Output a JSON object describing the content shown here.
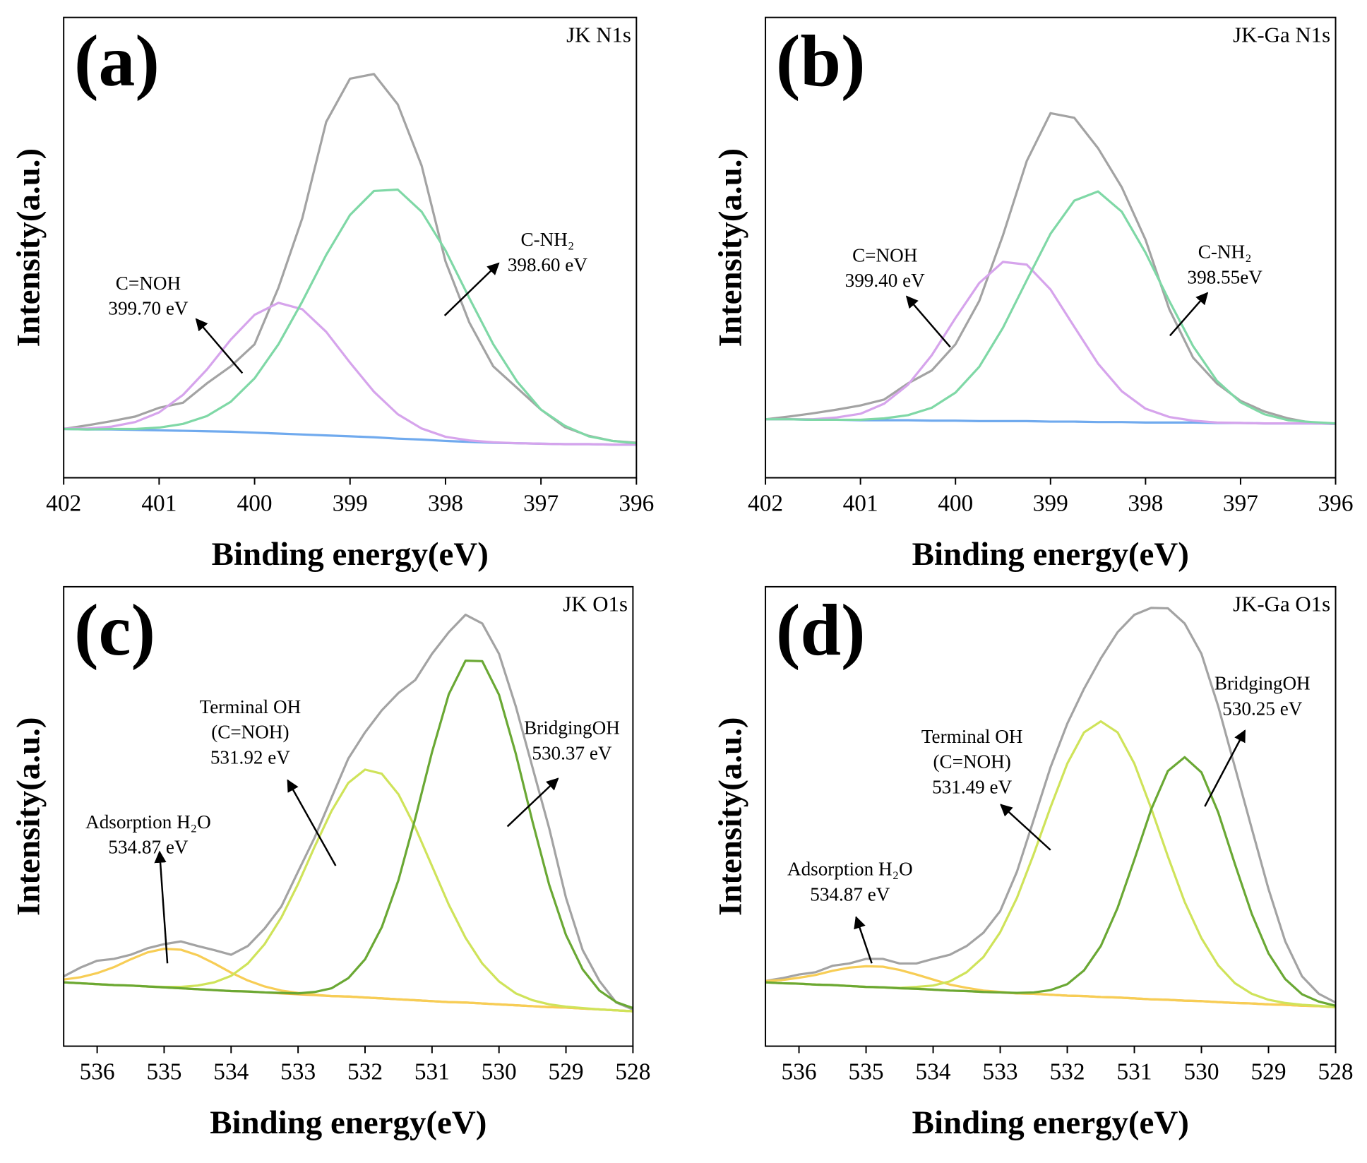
{
  "chart_data": [
    {
      "type": "line",
      "panel_label": "(a)",
      "title": "JK N1s",
      "xlabel": "Binding energy(eV)",
      "ylabel": "Intensity(a.u.)",
      "xlim": [
        402,
        396
      ],
      "xticks": [
        402,
        401,
        400,
        399,
        398,
        397,
        396
      ],
      "ylim": [
        0,
        100
      ],
      "x": [
        402,
        401.75,
        401.5,
        401.25,
        401,
        400.75,
        400.5,
        400.25,
        400,
        399.75,
        399.5,
        399.25,
        399,
        398.75,
        398.5,
        398.25,
        398,
        397.75,
        397.5,
        397.25,
        397,
        396.75,
        396.5,
        396.25,
        396
      ],
      "series": [
        {
          "color": "#a3a3a3",
          "values": [
            10.6,
            11.4,
            12.3,
            13.3,
            15.2,
            16.3,
            20.5,
            24.2,
            29.0,
            41.3,
            56.4,
            77.3,
            86.7,
            87.7,
            81.1,
            67.8,
            47.0,
            33.7,
            24.2,
            19.5,
            14.8,
            11.0,
            9.1,
            8.0,
            7.6
          ]
        },
        {
          "color": "#70aaee",
          "values": [
            10.6,
            10.5,
            10.5,
            10.4,
            10.3,
            10.2,
            10.1,
            10.0,
            9.8,
            9.6,
            9.4,
            9.2,
            9.0,
            8.8,
            8.5,
            8.3,
            8.0,
            7.8,
            7.6,
            7.5,
            7.4,
            7.3,
            7.3,
            7.2,
            7.2
          ]
        },
        {
          "color": "#d6a4ec",
          "values": [
            10.7,
            10.7,
            11.1,
            12.1,
            14.2,
            18.0,
            23.5,
            30.0,
            35.4,
            38.0,
            36.6,
            31.7,
            25.0,
            18.7,
            13.8,
            10.7,
            8.9,
            8.1,
            7.7,
            7.5,
            7.4,
            7.3,
            7.3,
            7.2,
            7.2
          ]
        },
        {
          "color": "#7fd8a6",
          "values": [
            10.6,
            10.5,
            10.6,
            10.6,
            10.9,
            11.7,
            13.4,
            16.5,
            21.6,
            29.0,
            38.3,
            48.4,
            57.1,
            62.3,
            62.6,
            57.8,
            49.4,
            39.0,
            29.0,
            20.9,
            14.8,
            11.3,
            9.0,
            8.0,
            7.5
          ]
        }
      ],
      "annotations": [
        [
          "C=NOH",
          "399.70 eV"
        ],
        [
          "C-NH₂",
          "398.60 eV"
        ]
      ]
    },
    {
      "type": "line",
      "panel_label": "(b)",
      "title": "JK-Ga N1s",
      "xlabel": "Binding energy(eV)",
      "ylabel": "Intensity(a.u.)",
      "xlim": [
        402,
        396
      ],
      "xticks": [
        402,
        401,
        400,
        399,
        398,
        397,
        396
      ],
      "ylim": [
        0,
        100
      ],
      "x": [
        402,
        401.75,
        401.5,
        401.25,
        401,
        400.75,
        400.5,
        400.25,
        400,
        399.75,
        399.5,
        399.25,
        399,
        398.75,
        398.5,
        398.25,
        398,
        397.75,
        397.5,
        397.25,
        397,
        396.75,
        396.5,
        396.25,
        396
      ],
      "series": [
        {
          "color": "#a3a3a3",
          "values": [
            12.7,
            13.3,
            14.0,
            14.8,
            15.7,
            17.0,
            20.5,
            23.3,
            29.0,
            38.4,
            52.7,
            68.8,
            79.2,
            78.2,
            71.6,
            63.1,
            51.7,
            36.6,
            26.1,
            20.5,
            16.7,
            14.4,
            12.9,
            11.9,
            11.7
          ]
        },
        {
          "color": "#70aaee",
          "values": [
            12.7,
            12.7,
            12.6,
            12.6,
            12.5,
            12.5,
            12.5,
            12.4,
            12.4,
            12.3,
            12.3,
            12.3,
            12.2,
            12.2,
            12.1,
            12.1,
            12.0,
            12.0,
            12.0,
            11.9,
            11.9,
            11.8,
            11.8,
            11.8,
            11.7
          ]
        },
        {
          "color": "#d6a4ec",
          "values": [
            12.7,
            12.7,
            12.7,
            13.1,
            13.9,
            16.1,
            20.2,
            26.6,
            34.7,
            42.3,
            46.9,
            46.3,
            40.9,
            32.8,
            24.8,
            18.8,
            15.0,
            13.2,
            12.4,
            12.0,
            11.9,
            11.8,
            11.8,
            11.8,
            11.7
          ]
        },
        {
          "color": "#7fd8a6",
          "values": [
            12.7,
            12.7,
            12.6,
            12.6,
            12.6,
            12.9,
            13.6,
            15.2,
            18.5,
            24.1,
            32.6,
            42.9,
            53.0,
            60.2,
            62.2,
            57.8,
            48.9,
            38.4,
            28.6,
            21.1,
            16.4,
            13.8,
            12.5,
            12.1,
            11.8
          ]
        }
      ],
      "annotations": [
        [
          "C=NOH",
          "399.40 eV"
        ],
        [
          "C-NH₂",
          "398.55eV"
        ]
      ]
    },
    {
      "type": "line",
      "panel_label": "(c)",
      "title": "JK O1s",
      "xlabel": "Binding energy(eV)",
      "ylabel": "Intensity(a.u.)",
      "xlim": [
        536.5,
        528
      ],
      "xticks": [
        536,
        535,
        534,
        533,
        532,
        531,
        530,
        529,
        528
      ],
      "ylim": [
        0,
        100
      ],
      "x": [
        536.5,
        536.25,
        536,
        535.75,
        535.5,
        535.25,
        535,
        534.75,
        534.5,
        534.25,
        534,
        533.75,
        533.5,
        533.25,
        533,
        532.75,
        532.5,
        532.25,
        532,
        531.75,
        531.5,
        531.25,
        531,
        530.75,
        530.5,
        530.25,
        530,
        529.75,
        529.5,
        529.25,
        529,
        528.75,
        528.5,
        528.25,
        528
      ],
      "series": [
        {
          "color": "#a3a3a3",
          "values": [
            15.2,
            17.1,
            18.6,
            19.0,
            19.9,
            21.3,
            22.2,
            22.8,
            21.8,
            20.9,
            19.9,
            21.8,
            25.6,
            30.4,
            38.0,
            45.5,
            54.1,
            62.6,
            68.3,
            73.1,
            76.9,
            79.7,
            85.4,
            90.1,
            93.9,
            92.0,
            85.4,
            74.0,
            60.7,
            47.4,
            32.3,
            20.9,
            14.2,
            9.5,
            8.0
          ]
        },
        {
          "color": "#f2b53c",
          "values": [
            13.9,
            13.7,
            13.5,
            13.3,
            13.2,
            13.0,
            12.8,
            12.6,
            12.4,
            12.2,
            12.0,
            11.9,
            11.7,
            11.5,
            11.3,
            11.1,
            10.9,
            10.8,
            10.6,
            10.4,
            10.2,
            10.0,
            9.8,
            9.6,
            9.5,
            9.3,
            9.1,
            8.9,
            8.7,
            8.5,
            8.4,
            8.2,
            8.0,
            7.8,
            7.6
          ]
        },
        {
          "color": "#f7cd55",
          "values": [
            14.5,
            15.0,
            15.9,
            17.2,
            18.9,
            20.4,
            21.2,
            21.0,
            19.8,
            18.0,
            16.0,
            14.3,
            13.0,
            12.1,
            11.6,
            11.2,
            10.9,
            10.8,
            10.6,
            10.4,
            10.2,
            10.0,
            9.8,
            9.6,
            9.5,
            9.3,
            9.1,
            8.9,
            8.7,
            8.5,
            8.4,
            8.2,
            8.0,
            7.8,
            7.6
          ]
        },
        {
          "color": "#cfe35a",
          "values": [
            13.9,
            13.7,
            13.5,
            13.3,
            13.2,
            13.0,
            12.9,
            12.9,
            13.2,
            13.9,
            15.3,
            18.0,
            22.2,
            28.0,
            35.3,
            43.5,
            51.2,
            57.3,
            60.2,
            59.3,
            54.8,
            47.6,
            39.2,
            30.8,
            23.6,
            18.0,
            14.1,
            11.5,
            10.0,
            9.1,
            8.6,
            8.3,
            8.0,
            7.8,
            7.6
          ]
        },
        {
          "color": "#6aa834",
          "values": [
            13.9,
            13.7,
            13.5,
            13.3,
            13.2,
            13.0,
            12.8,
            12.6,
            12.4,
            12.2,
            12.0,
            11.9,
            11.7,
            11.6,
            11.5,
            11.8,
            12.6,
            14.8,
            18.9,
            25.9,
            36.2,
            49.6,
            64.0,
            76.6,
            83.9,
            83.8,
            76.5,
            63.7,
            48.9,
            35.1,
            24.2,
            16.7,
            12.1,
            9.6,
            8.3
          ]
        }
      ],
      "annotations": [
        [
          "Adsorption H₂O",
          "534.87 eV"
        ],
        [
          "Terminal OH",
          "(C=NOH)",
          "531.92 eV"
        ],
        [
          "BridgingOH",
          "530.37 eV"
        ]
      ]
    },
    {
      "type": "line",
      "panel_label": "(d)",
      "title": "JK-Ga O1s",
      "xlabel": "Binding energy(eV)",
      "ylabel": "Intensity(a.u.)",
      "xlim": [
        536.5,
        528
      ],
      "xticks": [
        536,
        535,
        534,
        533,
        532,
        531,
        530,
        529,
        528
      ],
      "ylim": [
        0,
        100
      ],
      "x": [
        536.5,
        536.25,
        536,
        535.75,
        535.5,
        535.25,
        535,
        534.75,
        534.5,
        534.25,
        534,
        533.75,
        533.5,
        533.25,
        533,
        532.75,
        532.5,
        532.25,
        532,
        531.75,
        531.5,
        531.25,
        531,
        530.75,
        530.5,
        530.25,
        530,
        529.75,
        529.5,
        529.25,
        529,
        528.75,
        528.5,
        528.25,
        528
      ],
      "series": [
        {
          "color": "#a3a3a3",
          "values": [
            14.2,
            14.8,
            15.6,
            16.1,
            17.5,
            18.0,
            19.0,
            19.0,
            18.0,
            18.0,
            19.0,
            19.9,
            21.8,
            24.7,
            29.4,
            38.0,
            49.3,
            60.7,
            70.2,
            77.8,
            84.4,
            90.1,
            93.9,
            95.4,
            95.3,
            92.0,
            85.4,
            74.0,
            60.7,
            47.4,
            34.2,
            22.8,
            15.2,
            11.4,
            9.5
          ]
        },
        {
          "color": "#f2b53c",
          "values": [
            13.9,
            13.7,
            13.6,
            13.4,
            13.3,
            13.1,
            12.9,
            12.8,
            12.6,
            12.5,
            12.3,
            12.1,
            12.0,
            11.8,
            11.7,
            11.5,
            11.4,
            11.2,
            11.0,
            10.9,
            10.7,
            10.6,
            10.4,
            10.2,
            10.1,
            9.9,
            9.8,
            9.6,
            9.4,
            9.3,
            9.1,
            9.0,
            8.8,
            8.7,
            8.5
          ]
        },
        {
          "color": "#f7cd55",
          "values": [
            14.2,
            14.4,
            14.9,
            15.5,
            16.4,
            17.1,
            17.4,
            17.3,
            16.6,
            15.6,
            14.5,
            13.4,
            12.7,
            12.1,
            11.8,
            11.5,
            11.4,
            11.2,
            11.0,
            10.9,
            10.7,
            10.6,
            10.4,
            10.2,
            10.1,
            9.9,
            9.8,
            9.6,
            9.4,
            9.3,
            9.1,
            9.0,
            8.8,
            8.7,
            8.5
          ]
        },
        {
          "color": "#cfe35a",
          "values": [
            13.9,
            13.7,
            13.6,
            13.4,
            13.3,
            13.1,
            12.9,
            12.8,
            12.7,
            12.9,
            13.2,
            14.1,
            16.1,
            19.4,
            24.8,
            32.3,
            41.8,
            52.0,
            61.5,
            68.3,
            70.7,
            68.3,
            61.5,
            51.8,
            41.3,
            31.4,
            23.5,
            17.6,
            13.7,
            11.4,
            10.1,
            9.4,
            9.0,
            8.8,
            8.5
          ]
        },
        {
          "color": "#6aa834",
          "values": [
            13.9,
            13.7,
            13.6,
            13.4,
            13.3,
            13.1,
            12.9,
            12.8,
            12.6,
            12.5,
            12.3,
            12.1,
            12.0,
            11.8,
            11.7,
            11.6,
            11.7,
            12.2,
            13.5,
            16.5,
            21.8,
            30.1,
            40.6,
            51.5,
            59.9,
            62.9,
            59.6,
            50.9,
            39.6,
            28.8,
            20.2,
            14.6,
            11.3,
            9.7,
            8.8
          ]
        }
      ],
      "annotations": [
        [
          "Adsorption H₂O",
          "534.87 eV"
        ],
        [
          "Terminal OH",
          "(C=NOH)",
          "531.49 eV"
        ],
        [
          "BridgingOH",
          "530.25 eV"
        ]
      ]
    }
  ]
}
